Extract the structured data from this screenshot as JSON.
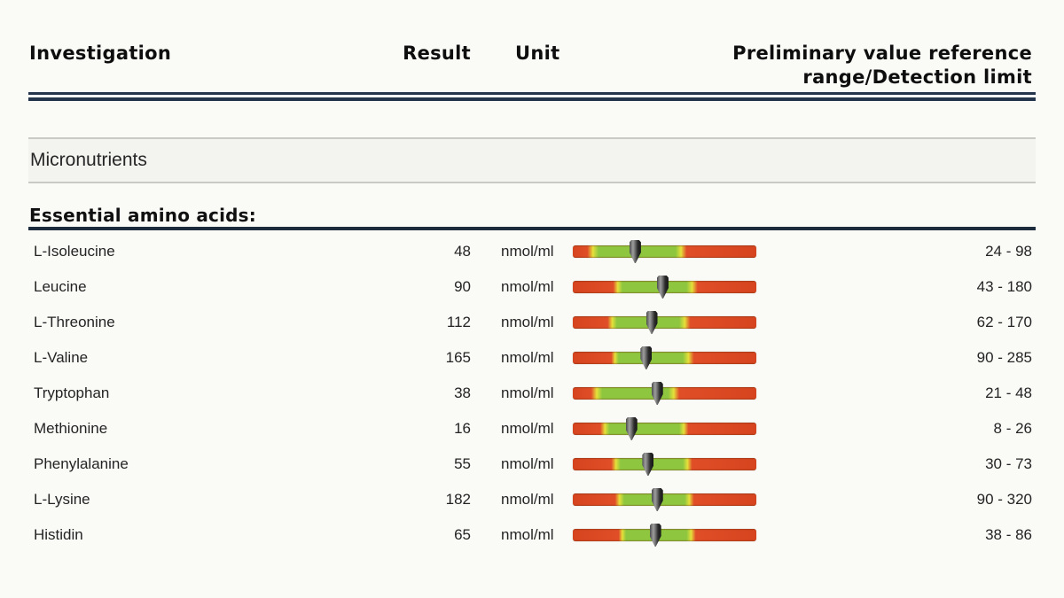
{
  "header": {
    "col_investigation": "Investigation",
    "col_result": "Result",
    "col_unit": "Unit",
    "col_reference_line1": "Preliminary value reference",
    "col_reference_line2": "range/Detection limit"
  },
  "sections": {
    "group_label": "Micronutrients",
    "subgroup_label": "Essential amino acids:"
  },
  "colors": {
    "rule_navy": "#24344a",
    "bar_red": "#e04e28",
    "bar_red_dark": "#d6441f",
    "bar_yellow": "#e5e03a",
    "bar_green": "#8ec73f",
    "marker_dark": "#2d2d2d"
  },
  "table": {
    "rows": [
      {
        "name": "L-Isoleucine",
        "result": "48",
        "unit": "nmol/ml",
        "range": "24 - 98",
        "marker_pct": 34,
        "zones": {
          "red_end": 8,
          "green_start": 14,
          "green_end": 56,
          "red_start": 62
        }
      },
      {
        "name": "Leucine",
        "result": "90",
        "unit": "nmol/ml",
        "range": "43 - 180",
        "marker_pct": 49,
        "zones": {
          "red_end": 22,
          "green_start": 27,
          "green_end": 62,
          "red_start": 68
        }
      },
      {
        "name": "L-Threonine",
        "result": "112",
        "unit": "nmol/ml",
        "range": "62 - 170",
        "marker_pct": 43,
        "zones": {
          "red_end": 19,
          "green_start": 24,
          "green_end": 58,
          "red_start": 64
        }
      },
      {
        "name": "L-Valine",
        "result": "165",
        "unit": "nmol/ml",
        "range": "90 - 285",
        "marker_pct": 40,
        "zones": {
          "red_end": 21,
          "green_start": 25,
          "green_end": 60,
          "red_start": 66
        }
      },
      {
        "name": "Tryptophan",
        "result": "38",
        "unit": "nmol/ml",
        "range": "21 - 48",
        "marker_pct": 46,
        "zones": {
          "red_end": 10,
          "green_start": 16,
          "green_end": 52,
          "red_start": 58
        }
      },
      {
        "name": "Methionine",
        "result": "16",
        "unit": "nmol/ml",
        "range": "8 - 26",
        "marker_pct": 32,
        "zones": {
          "red_end": 15,
          "green_start": 20,
          "green_end": 58,
          "red_start": 63
        }
      },
      {
        "name": "Phenylalanine",
        "result": "55",
        "unit": "nmol/ml",
        "range": "30 - 73",
        "marker_pct": 41,
        "zones": {
          "red_end": 21,
          "green_start": 26,
          "green_end": 60,
          "red_start": 65
        }
      },
      {
        "name": "L-Lysine",
        "result": "182",
        "unit": "nmol/ml",
        "range": "90 - 320",
        "marker_pct": 46,
        "zones": {
          "red_end": 23,
          "green_start": 28,
          "green_end": 61,
          "red_start": 66
        }
      },
      {
        "name": "Histidin",
        "result": "65",
        "unit": "nmol/ml",
        "range": "38 - 86",
        "marker_pct": 45,
        "zones": {
          "red_end": 25,
          "green_start": 29,
          "green_end": 62,
          "red_start": 67
        }
      }
    ]
  }
}
